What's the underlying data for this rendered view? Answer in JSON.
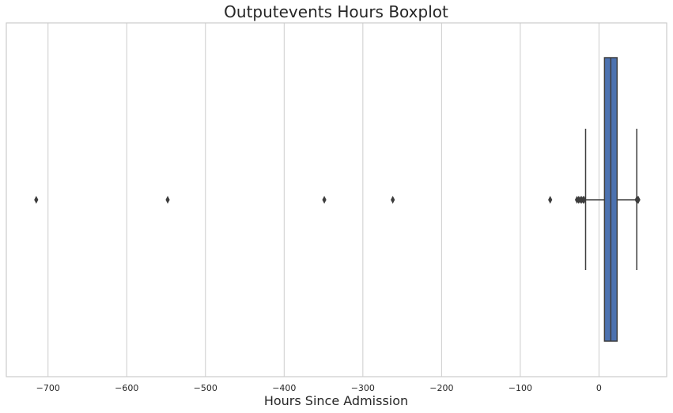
{
  "chart_data": {
    "type": "boxplot",
    "orientation": "horizontal",
    "title": "Outputevents Hours Boxplot",
    "xlabel": "Hours Since Admission",
    "ylabel": "",
    "xlim": [
      -753,
      86
    ],
    "xticks": [
      -700,
      -600,
      -500,
      -400,
      -300,
      -200,
      -100,
      0
    ],
    "xtick_labels": [
      "−700",
      "−600",
      "−500",
      "−400",
      "−300",
      "−200",
      "−100",
      "0"
    ],
    "grid": "vertical",
    "box": {
      "whisker_low": -17,
      "q1": 7,
      "median": 15,
      "q3": 23,
      "whisker_high": 48
    },
    "outliers": [
      -715,
      -548,
      -349,
      -262,
      -62,
      -28,
      -26,
      -24,
      -22,
      -20,
      -19,
      48,
      49,
      50
    ],
    "colors": {
      "box_fill": "#4c72b0",
      "box_edge": "#3d3d3d",
      "grid": "#cccccc",
      "frame": "#cccccc",
      "outlier": "#3d3d3d"
    }
  }
}
